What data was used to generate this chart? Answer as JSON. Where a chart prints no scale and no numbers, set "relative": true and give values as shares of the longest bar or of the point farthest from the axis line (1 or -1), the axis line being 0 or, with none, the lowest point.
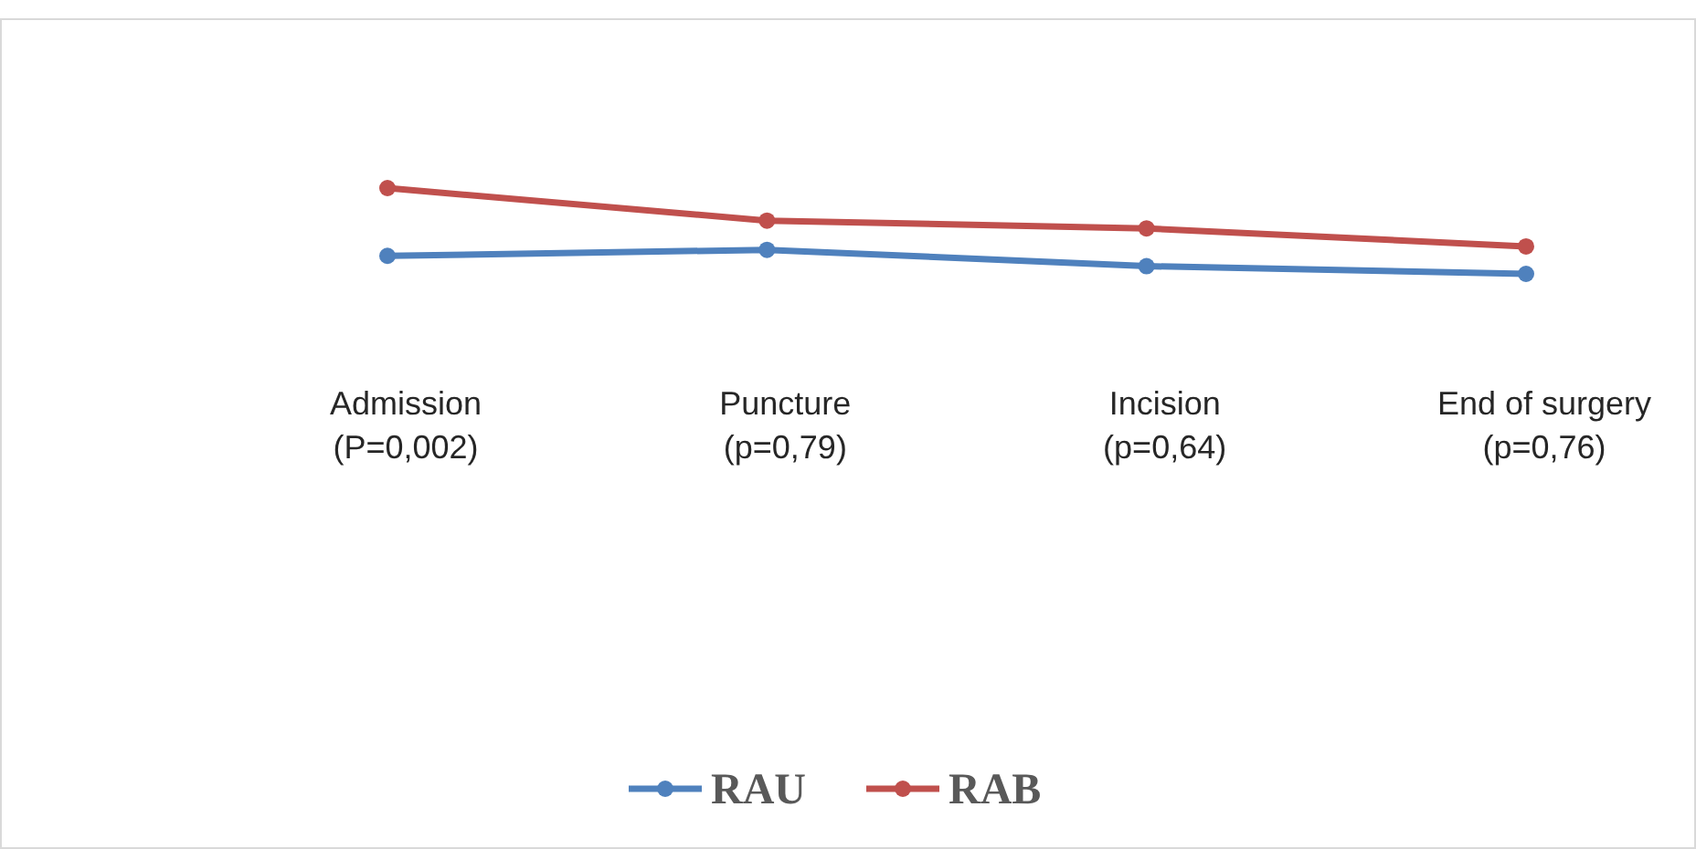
{
  "chart_data": {
    "type": "line",
    "relative": true,
    "categories": [
      "Admission\n(P=0,002)",
      "Puncture\n(p=0,79)",
      "Incision\n(p=0,64)",
      "End of surgery\n(p=0,76)"
    ],
    "series": [
      {
        "name": "RAU",
        "color": "#4f81bd",
        "values": [
          0.21,
          0.28,
          0.09,
          0
        ]
      },
      {
        "name": "RAB",
        "color": "#c0504d",
        "values": [
          1,
          0.62,
          0.53,
          0.32
        ]
      }
    ],
    "legend": "bottom",
    "marker": "circle"
  }
}
